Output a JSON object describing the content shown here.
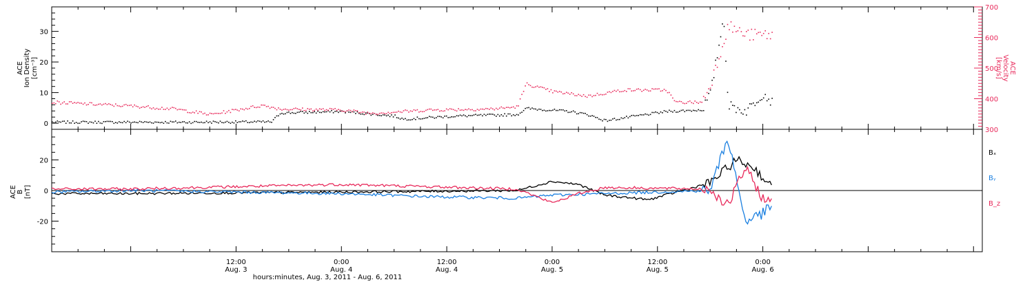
{
  "colors": {
    "black": "#000000",
    "red": "#e8285a",
    "blue": "#1a7fe0"
  },
  "x_ticks": [
    {
      "time": "12:00",
      "day": "Aug. 3"
    },
    {
      "time": "0:00",
      "day": "Aug. 4"
    },
    {
      "time": "12:00",
      "day": "Aug. 4"
    },
    {
      "time": "0:00",
      "day": "Aug. 5"
    },
    {
      "time": "12:00",
      "day": "Aug. 5"
    },
    {
      "time": "0:00",
      "day": "Aug. 6"
    }
  ],
  "xlabel": "hours:minutes, Aug.  3, 2011 - Aug.  6, 2011",
  "top": {
    "left_label": [
      "ACE",
      "Ion Density",
      "[cm⁻³]"
    ],
    "right_label": [
      "ACE",
      "Velocity",
      "[km/s]"
    ],
    "left_ticks": [
      "0",
      "10",
      "20",
      "30"
    ],
    "right_ticks": [
      "300",
      "400",
      "500",
      "600",
      "700"
    ]
  },
  "bottom": {
    "left_label": [
      "ACE",
      "B",
      "[nT]"
    ],
    "left_ticks": [
      "20",
      "0",
      "-20"
    ],
    "legend": [
      "Bₓ",
      "Bᵧ",
      "B_z"
    ]
  },
  "chart_data": [
    {
      "type": "scatter",
      "title": "",
      "xlabel": "hours:minutes, Aug.  3, 2011 - Aug.  6, 2011",
      "xlim": [
        "2011-08-02 15:00",
        "2011-08-07 01:00"
      ],
      "ylabel": "ACE Ion Density [cm-3]",
      "ylim": [
        -2,
        38
      ],
      "y2label": "ACE Velocity [km/s]",
      "y2lim": [
        300,
        700
      ],
      "series": [
        {
          "name": "Ion Density",
          "axis": "left",
          "color": "#000000",
          "x": [
            "2011-08-02 15:00",
            "2011-08-03 06:00",
            "2011-08-03 16:00",
            "2011-08-03 17:00",
            "2011-08-04 00:00",
            "2011-08-04 06:00",
            "2011-08-04 07:00",
            "2011-08-04 13:00",
            "2011-08-04 20:00",
            "2011-08-04 21:00",
            "2011-08-05 02:00",
            "2011-08-05 04:00",
            "2011-08-05 06:00",
            "2011-08-05 13:00",
            "2011-08-05 17:00",
            "2011-08-05 18:00",
            "2011-08-05 19:30",
            "2011-08-05 20:00",
            "2011-08-05 22:00",
            "2011-08-06 00:00",
            "2011-08-06 01:00"
          ],
          "y": [
            0.5,
            0.5,
            0.6,
            3.5,
            4,
            2.5,
            1.5,
            2.5,
            3,
            5,
            4,
            3,
            1,
            4,
            4.5,
            10,
            35,
            6,
            4,
            10,
            7
          ]
        },
        {
          "name": "Velocity",
          "axis": "right",
          "color": "#e8285a",
          "x": [
            "2011-08-02 15:00",
            "2011-08-03 00:00",
            "2011-08-03 05:00",
            "2011-08-03 09:00",
            "2011-08-03 15:00",
            "2011-08-03 17:00",
            "2011-08-04 00:00",
            "2011-08-04 03:00",
            "2011-08-04 04:00",
            "2011-08-04 10:00",
            "2011-08-04 17:00",
            "2011-08-04 20:00",
            "2011-08-04 21:00",
            "2011-08-05 00:00",
            "2011-08-05 04:00",
            "2011-08-05 08:00",
            "2011-08-05 13:00",
            "2011-08-05 14:00",
            "2011-08-05 17:00",
            "2011-08-05 18:00",
            "2011-08-05 20:00",
            "2011-08-05 22:00",
            "2011-08-06 01:00"
          ],
          "y": [
            390,
            378,
            368,
            350,
            380,
            368,
            365,
            355,
            355,
            365,
            368,
            375,
            450,
            425,
            410,
            430,
            430,
            390,
            390,
            450,
            640,
            610,
            610
          ]
        }
      ]
    },
    {
      "type": "line",
      "title": "",
      "ylabel": "ACE B [nT]",
      "ylim": [
        -40,
        40
      ],
      "series": [
        {
          "name": "Bx",
          "color": "#000000",
          "x": [
            "2011-08-02 15:00",
            "2011-08-03 00:00",
            "2011-08-04 00:00",
            "2011-08-04 20:00",
            "2011-08-05 00:00",
            "2011-08-05 03:00",
            "2011-08-05 06:00",
            "2011-08-05 11:00",
            "2011-08-05 18:00",
            "2011-08-05 21:00",
            "2011-08-05 23:00",
            "2011-08-06 01:00"
          ],
          "y": [
            -2,
            -2,
            -1,
            0,
            6,
            4,
            -3,
            -6,
            5,
            20,
            15,
            2
          ]
        },
        {
          "name": "By",
          "color": "#1a7fe0",
          "x": [
            "2011-08-02 15:00",
            "2011-08-03 00:00",
            "2011-08-04 00:00",
            "2011-08-04 10:00",
            "2011-08-04 20:00",
            "2011-08-05 00:00",
            "2011-08-05 06:00",
            "2011-08-05 18:00",
            "2011-08-05 20:00",
            "2011-08-05 22:00",
            "2011-08-06 00:00",
            "2011-08-06 01:00"
          ],
          "y": [
            -1,
            0,
            -2,
            -4,
            -5,
            -3,
            -2,
            0,
            35,
            -20,
            -15,
            -10
          ]
        },
        {
          "name": "Bz",
          "color": "#e8285a",
          "x": [
            "2011-08-02 15:00",
            "2011-08-03 00:00",
            "2011-08-04 00:00",
            "2011-08-04 20:00",
            "2011-08-05 00:00",
            "2011-08-05 03:00",
            "2011-08-05 06:00",
            "2011-08-05 18:00",
            "2011-08-05 20:00",
            "2011-08-05 22:00",
            "2011-08-06 00:00",
            "2011-08-06 01:00"
          ],
          "y": [
            1,
            1,
            4,
            1,
            -8,
            -2,
            2,
            1,
            -10,
            15,
            -5,
            -8
          ]
        }
      ]
    }
  ]
}
